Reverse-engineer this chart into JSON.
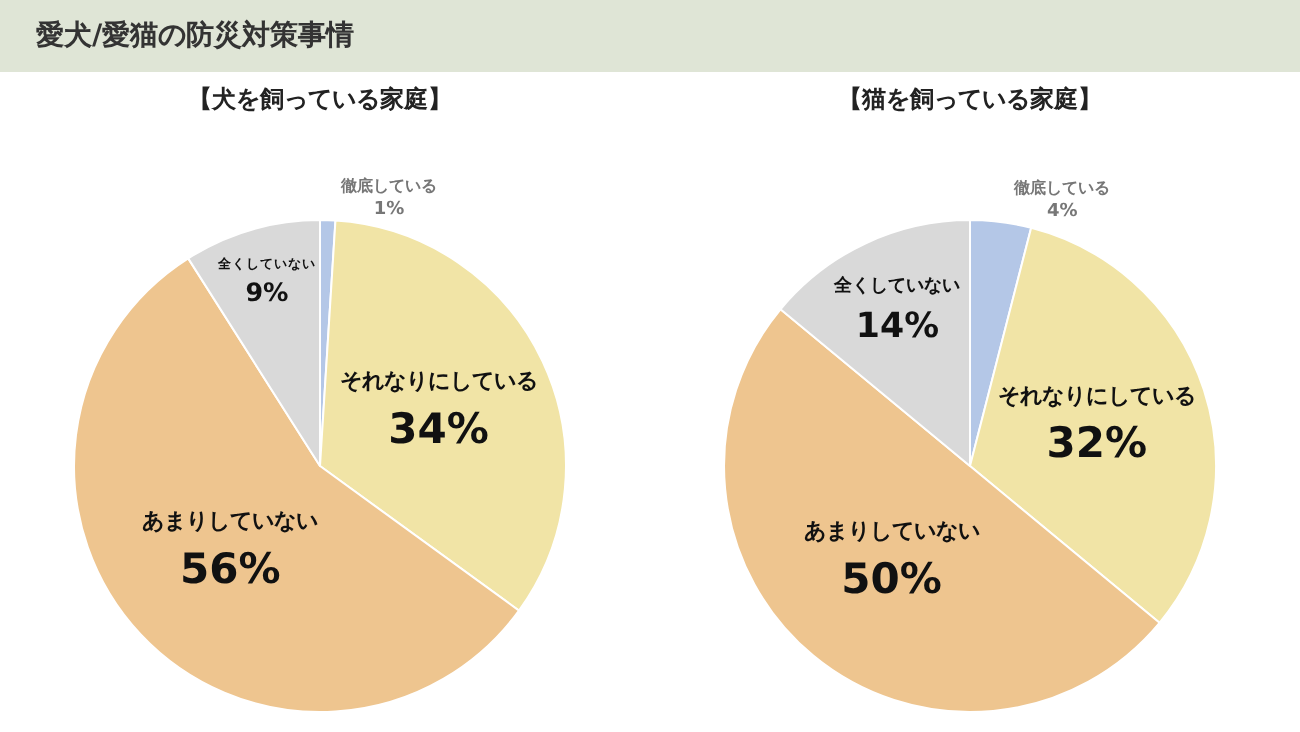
{
  "chart_data": [
    {
      "type": "pie",
      "title": "愛犬/愛猫の防災対策事情",
      "subtitle": "【犬を飼っている家庭】",
      "categories": [
        "徹底している",
        "それなりにしている",
        "あまりしていない",
        "全くしていない"
      ],
      "values": [
        1,
        34,
        56,
        9
      ],
      "colors": [
        "#b4c7e7",
        "#f1e4a6",
        "#eec58f",
        "#d9d9d9"
      ],
      "value_labels": [
        "1%",
        "34%",
        "56%",
        "9%"
      ],
      "legend": false
    },
    {
      "type": "pie",
      "subtitle": "【猫を飼っている家庭】",
      "categories": [
        "徹底している",
        "それなりにしている",
        "あまりしていない",
        "全くしていない"
      ],
      "values": [
        4,
        32,
        50,
        14
      ],
      "colors": [
        "#b4c7e7",
        "#f1e4a6",
        "#eec58f",
        "#d9d9d9"
      ],
      "value_labels": [
        "4%",
        "32%",
        "50%",
        "14%"
      ],
      "legend": false
    }
  ]
}
